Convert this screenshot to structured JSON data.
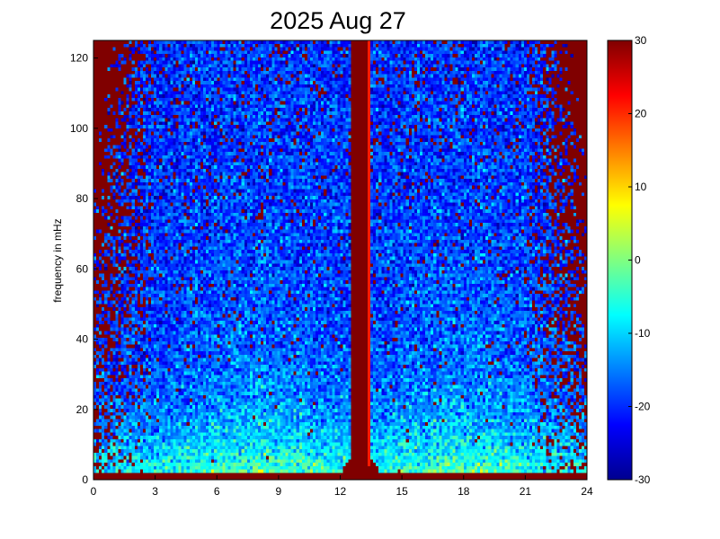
{
  "chart_data": {
    "type": "heatmap",
    "title": "2025 Aug 27",
    "xlabel": "",
    "ylabel": "frequency in mHz",
    "xlim": [
      0,
      24
    ],
    "ylim": [
      0,
      125
    ],
    "x_ticks": [
      0,
      3,
      6,
      9,
      12,
      15,
      18,
      21,
      24
    ],
    "y_ticks": [
      0,
      20,
      40,
      60,
      80,
      100,
      120
    ],
    "colorbar": {
      "colormap": "jet",
      "range": [
        -30,
        30
      ],
      "ticks": [
        30,
        20,
        10,
        0,
        -10,
        -20,
        -30
      ]
    },
    "features": {
      "saturated_vertical_band_hours": [
        12.5,
        13.5
      ],
      "low_frequency_band_mHz": [
        0,
        15
      ],
      "noise_floor_level": -20
    }
  }
}
